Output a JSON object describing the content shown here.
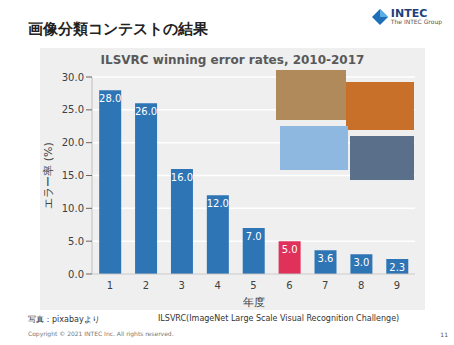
{
  "slide": {
    "title": "画像分類コンテストの結果",
    "logo": "INTEC",
    "logo_sub": "The INTEC Group",
    "photo_credit": "写真：pixabayより",
    "caption": "ILSVRC(ImageNet Large Scale Visual Recognition Challenge)",
    "copyright": "Copyright © 2021 INTEC Inc. All rights reserved.",
    "page": "11"
  },
  "chart_data": {
    "type": "bar",
    "title": "ILSVRC winning error rates, 2010-2017",
    "y_label": "エラー率 (%)",
    "x_label": "年度",
    "categories": [
      "1",
      "2",
      "3",
      "4",
      "5",
      "6",
      "7",
      "8",
      "9"
    ],
    "values": [
      28.0,
      26.0,
      16.0,
      12.0,
      7.0,
      5.0,
      3.6,
      3.0,
      2.3
    ],
    "value_labels": [
      "28.0",
      "26.0",
      "16.0",
      "12.0",
      "7.0",
      "5.0",
      "3.6",
      "3.0",
      "2.3"
    ],
    "colors": [
      "#2e75b6",
      "#2e75b6",
      "#2e75b6",
      "#2e75b6",
      "#2e75b6",
      "#e0315a",
      "#2e75b6",
      "#2e75b6",
      "#2e75b6"
    ],
    "ylim": [
      0,
      30
    ],
    "yticks": [
      {
        "value": 0,
        "label": "0.0"
      },
      {
        "value": 5,
        "label": "5.0"
      },
      {
        "value": 10,
        "label": "10.0"
      },
      {
        "value": 15,
        "label": "15.0"
      },
      {
        "value": 20,
        "label": "20.0"
      },
      {
        "value": 25,
        "label": "25.0"
      },
      {
        "value": 30,
        "label": "30.0"
      }
    ],
    "grid": true,
    "data_labels": true
  }
}
